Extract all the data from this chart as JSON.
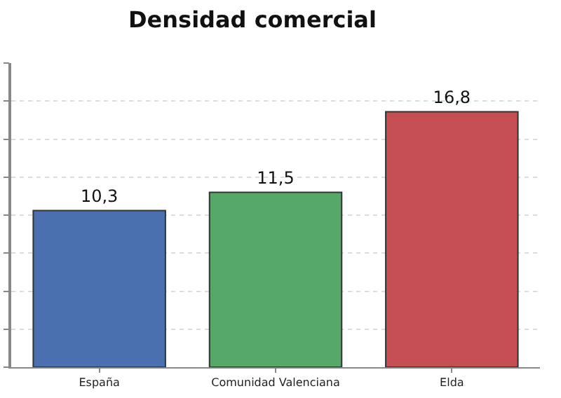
{
  "chart_data": {
    "type": "bar",
    "title": "Densidad comercial",
    "categories": [
      "España",
      "Comunidad Valenciana",
      "Elda"
    ],
    "values": [
      10.3,
      11.5,
      16.8
    ],
    "colors": [
      "#4a70b0",
      "#55a868",
      "#c44e52"
    ],
    "value_labels": [
      "10,3",
      "11,5",
      "16,8"
    ],
    "ylim": [
      0,
      20
    ],
    "yticks": [
      {
        "value": 0,
        "label": null
      },
      {
        "value": 2.5,
        "label": null
      },
      {
        "value": 5,
        "label": null
      },
      {
        "value": 7.5,
        "label": null
      },
      {
        "value": 10,
        "label": null
      },
      {
        "value": 12.5,
        "label": null
      },
      {
        "value": 15,
        "label": null
      },
      {
        "value": 17.5,
        "label": null
      },
      {
        "value": 20,
        "label": null
      }
    ],
    "grid": "y",
    "tick_labels": "x"
  }
}
